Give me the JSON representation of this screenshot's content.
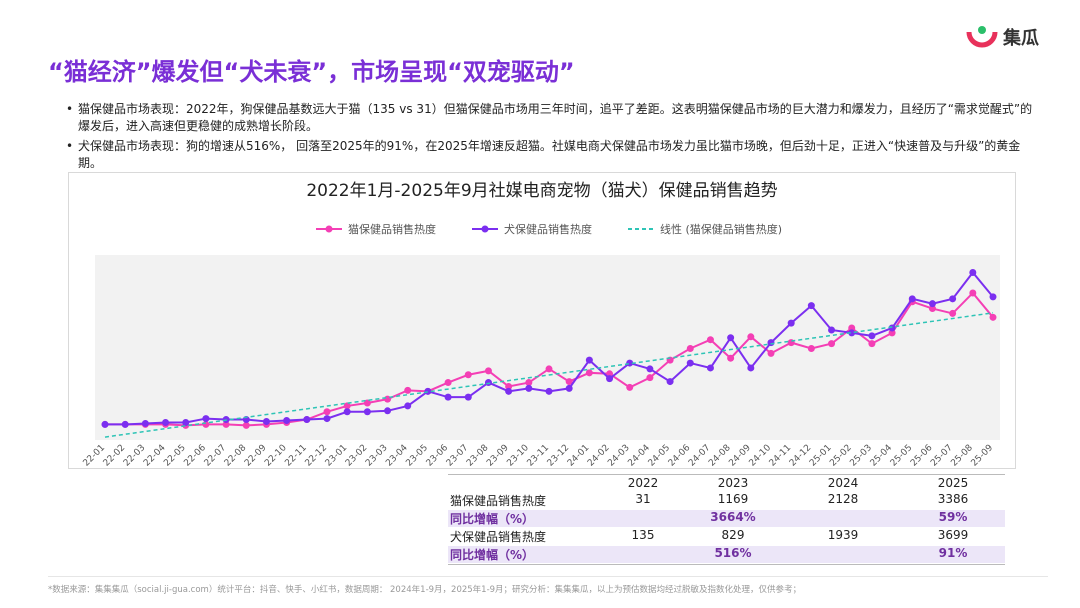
{
  "header": {
    "title": "“猫经济”爆发但“犬未衰”，市场呈现“双宠驱动”",
    "logo": "集瓜"
  },
  "bullets": [
    "猫保健品市场表现：2022年，狗保健品基数远大于猫（135 vs 31）但猫保健品市场用三年时间，追平了差距。这表明猫保健品市场的巨大潜力和爆发力，且经历了“需求觉醒式”的爆发后，进入高速但更稳健的成熟增长阶段。",
    "犬保健品市场表现：狗的增速从516%， 回落至2025年的91%，在2025年增速反超猫。社媒电商犬保健品市场发力虽比猫市场晚，但后劲十足，正进入“快速普及与升级”的黄金期。"
  ],
  "chart_data": {
    "type": "line",
    "title": "2022年1月-2025年9月社媒电商宠物（猫犬）保健品销售趋势",
    "categories": [
      "22-01",
      "22-02",
      "22-03",
      "22-04",
      "22-05",
      "22-06",
      "22-07",
      "22-08",
      "22-09",
      "22-10",
      "22-11",
      "22-12",
      "23-01",
      "23-02",
      "23-03",
      "23-04",
      "23-05",
      "23-06",
      "23-07",
      "23-08",
      "23-09",
      "23-10",
      "23-11",
      "23-12",
      "24-01",
      "24-02",
      "24-03",
      "24-04",
      "24-05",
      "24-06",
      "24-07",
      "24-08",
      "24-09",
      "24-10",
      "24-11",
      "24-12",
      "25-01",
      "25-02",
      "25-03",
      "25-04",
      "25-05",
      "25-06",
      "25-07",
      "25-08",
      "25-09"
    ],
    "ylim": [
      0,
      190
    ],
    "grid": false,
    "legend": "top",
    "series": [
      {
        "name": "猫保健品销售热度",
        "color": "#f43fb5",
        "values": [
          16,
          16,
          16,
          16,
          15,
          16,
          16,
          15,
          16,
          18,
          21,
          29,
          35,
          38,
          42,
          51,
          50,
          59,
          67,
          71,
          55,
          59,
          73,
          60,
          69,
          68,
          54,
          64,
          82,
          94,
          103,
          84,
          106,
          89,
          100,
          94,
          99,
          115,
          99,
          110,
          142,
          135,
          130,
          151,
          126
        ]
      },
      {
        "name": "犬保健品销售热度",
        "color": "#7b2ff0",
        "values": [
          16,
          16,
          17,
          18,
          18,
          22,
          21,
          21,
          19,
          20,
          21,
          22,
          29,
          29,
          30,
          35,
          50,
          44,
          44,
          59,
          50,
          53,
          50,
          53,
          82,
          63,
          79,
          73,
          60,
          79,
          74,
          105,
          74,
          100,
          120,
          138,
          113,
          110,
          107,
          115,
          145,
          140,
          145,
          172,
          147
        ]
      },
      {
        "name": "线性 (猫保健品销售热度)",
        "color": "#2ec4b6",
        "dashed": true,
        "markers": false,
        "values": [
          3,
          5.9,
          8.8,
          11.7,
          14.6,
          17.5,
          20.4,
          23.3,
          26.2,
          29.1,
          32,
          34.9,
          37.8,
          40.7,
          43.6,
          46.5,
          49.4,
          52.3,
          55.2,
          58.1,
          61,
          63.9,
          66.8,
          69.7,
          72.6,
          75.5,
          78.4,
          81.3,
          84.2,
          87.1,
          90,
          92.9,
          95.8,
          98.7,
          101.6,
          104.5,
          107.4,
          110.3,
          113.2,
          116.1,
          119,
          121.9,
          124.8,
          127.7,
          130.6
        ]
      }
    ]
  },
  "table": {
    "columns": [
      "2022",
      "2023",
      "2024",
      "2025"
    ],
    "rows": [
      {
        "label": "猫保健品销售热度",
        "cells": [
          31,
          1169,
          2128,
          3386
        ]
      },
      {
        "label": "同比增幅（%）",
        "highlight": true,
        "cells": [
          null,
          "3664%",
          null,
          "59%"
        ]
      },
      {
        "label": "犬保健品销售热度",
        "cells": [
          135,
          829,
          1939,
          3699
        ]
      },
      {
        "label": "同比增幅（%）",
        "highlight": true,
        "cells": [
          null,
          "516%",
          null,
          "91%"
        ]
      }
    ]
  },
  "footer": "*数据来源：集集集瓜（social.ji-gua.com）统计平台：抖音、快手、小红书，数据周期： 2024年1-9月，2025年1-9月；研究分析：集集集瓜，以上为预估数据均经过脱敏及指数化处理，仅供参考；"
}
